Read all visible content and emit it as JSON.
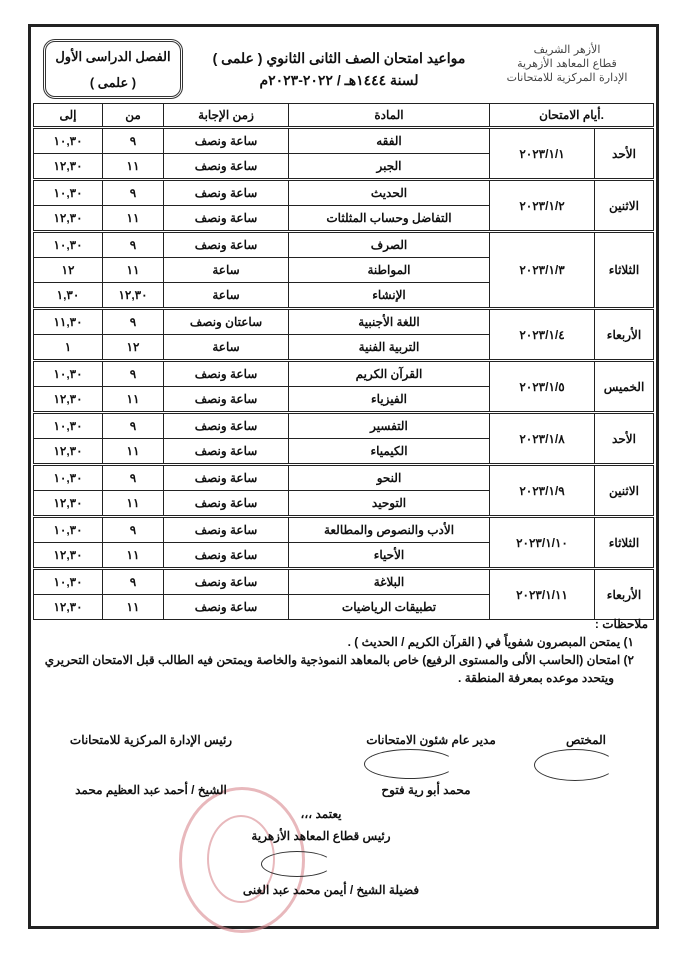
{
  "header": {
    "logo_lines": [
      "الأزهر الشريف",
      "قطاع المعاهد الأزهرية",
      "الإدارة المركزية للامتحانات"
    ],
    "title_line1": "مواعيد امتحان الصف الثانى الثانوي ( علمى )",
    "title_line2": "لسنة ١٤٤٤هـ / ٢٠٢٢-٢٠٢٣م",
    "term_line1": "الفصل الدراسى الأول",
    "term_line2": "( علمى )"
  },
  "table": {
    "columns": {
      "days": ".أيام الامتحان",
      "subject": "المادة",
      "duration": "زمن الإجابة",
      "from": "من",
      "to": "إلى"
    },
    "groups": [
      {
        "day": "الأحد",
        "date": "٢٠٢٣/١/١",
        "rows": [
          [
            "الفقه",
            "ساعة ونصف",
            "٩",
            "١٠,٣٠"
          ],
          [
            "الجبر",
            "ساعة ونصف",
            "١١",
            "١٢,٣٠"
          ]
        ]
      },
      {
        "day": "الاثنين",
        "date": "٢٠٢٣/١/٢",
        "rows": [
          [
            "الحديث",
            "ساعة ونصف",
            "٩",
            "١٠,٣٠"
          ],
          [
            "التفاضل وحساب المثلثات",
            "ساعة ونصف",
            "١١",
            "١٢,٣٠"
          ]
        ]
      },
      {
        "day": "الثلاثاء",
        "date": "٢٠٢٣/١/٣",
        "rows": [
          [
            "الصرف",
            "ساعة ونصف",
            "٩",
            "١٠,٣٠"
          ],
          [
            "المواطنة",
            "ساعة",
            "١١",
            "١٢"
          ],
          [
            "الإنشاء",
            "ساعة",
            "١٢,٣٠",
            "١,٣٠"
          ]
        ]
      },
      {
        "day": "الأربعاء",
        "date": "٢٠٢٣/١/٤",
        "rows": [
          [
            "اللغة الأجنبية",
            "ساعتان ونصف",
            "٩",
            "١١,٣٠"
          ],
          [
            "التربية الفنية",
            "ساعة",
            "١٢",
            "١"
          ]
        ]
      },
      {
        "day": "الخميس",
        "date": "٢٠٢٣/١/٥",
        "rows": [
          [
            "القرآن الكريم",
            "ساعة ونصف",
            "٩",
            "١٠,٣٠"
          ],
          [
            "الفيزياء",
            "ساعة ونصف",
            "١١",
            "١٢,٣٠"
          ]
        ]
      },
      {
        "day": "الأحد",
        "date": "٢٠٢٣/١/٨",
        "rows": [
          [
            "التفسير",
            "ساعة ونصف",
            "٩",
            "١٠,٣٠"
          ],
          [
            "الكيمياء",
            "ساعة ونصف",
            "١١",
            "١٢,٣٠"
          ]
        ]
      },
      {
        "day": "الاثنين",
        "date": "٢٠٢٣/١/٩",
        "rows": [
          [
            "النحو",
            "ساعة ونصف",
            "٩",
            "١٠,٣٠"
          ],
          [
            "التوحيد",
            "ساعة ونصف",
            "١١",
            "١٢,٣٠"
          ]
        ]
      },
      {
        "day": "الثلاثاء",
        "date": "٢٠٢٣/١/١٠",
        "rows": [
          [
            "الأدب والنصوص والمطالعة",
            "ساعة ونصف",
            "٩",
            "١٠,٣٠"
          ],
          [
            "الأحياء",
            "ساعة ونصف",
            "١١",
            "١٢,٣٠"
          ]
        ]
      },
      {
        "day": "الأربعاء",
        "date": "٢٠٢٣/١/١١",
        "rows": [
          [
            "البلاغة",
            "ساعة ونصف",
            "٩",
            "١٠,٣٠"
          ],
          [
            "تطبيقات الرياضيات",
            "ساعة ونصف",
            "١١",
            "١٢,٣٠"
          ]
        ]
      }
    ]
  },
  "notes": {
    "heading": "ملاحظات :",
    "items": [
      "١) يمتحن المبصرون شفوياً في ( القرآن الكريم / الحديث ) .",
      "٢) امتحان (الحاسب الألى والمستوى الرفيع) خاص بالمعاهد النموذجية والخاصة ويمتحن فيه الطالب قبل الامتحان التحريري",
      "ويتحدد موعده بمعرفة المنطقة ."
    ]
  },
  "signatures": {
    "specialist": "المختص",
    "exams_director_title": "مدير عام شئون الامتحانات",
    "exams_director_name": "محمد أبو رية فتوح",
    "central_head_title": "رئيس الإدارة المركزية للامتحانات",
    "central_head_name": "الشيخ / أحمد عبد العظيم محمد",
    "approve": "يعتمد ،،،",
    "sector_head_title": "رئيس قطاع المعاهد الأزهرية",
    "sector_head_name": "فضيلة الشيخ / أيمن محمد عبد الغنى"
  }
}
